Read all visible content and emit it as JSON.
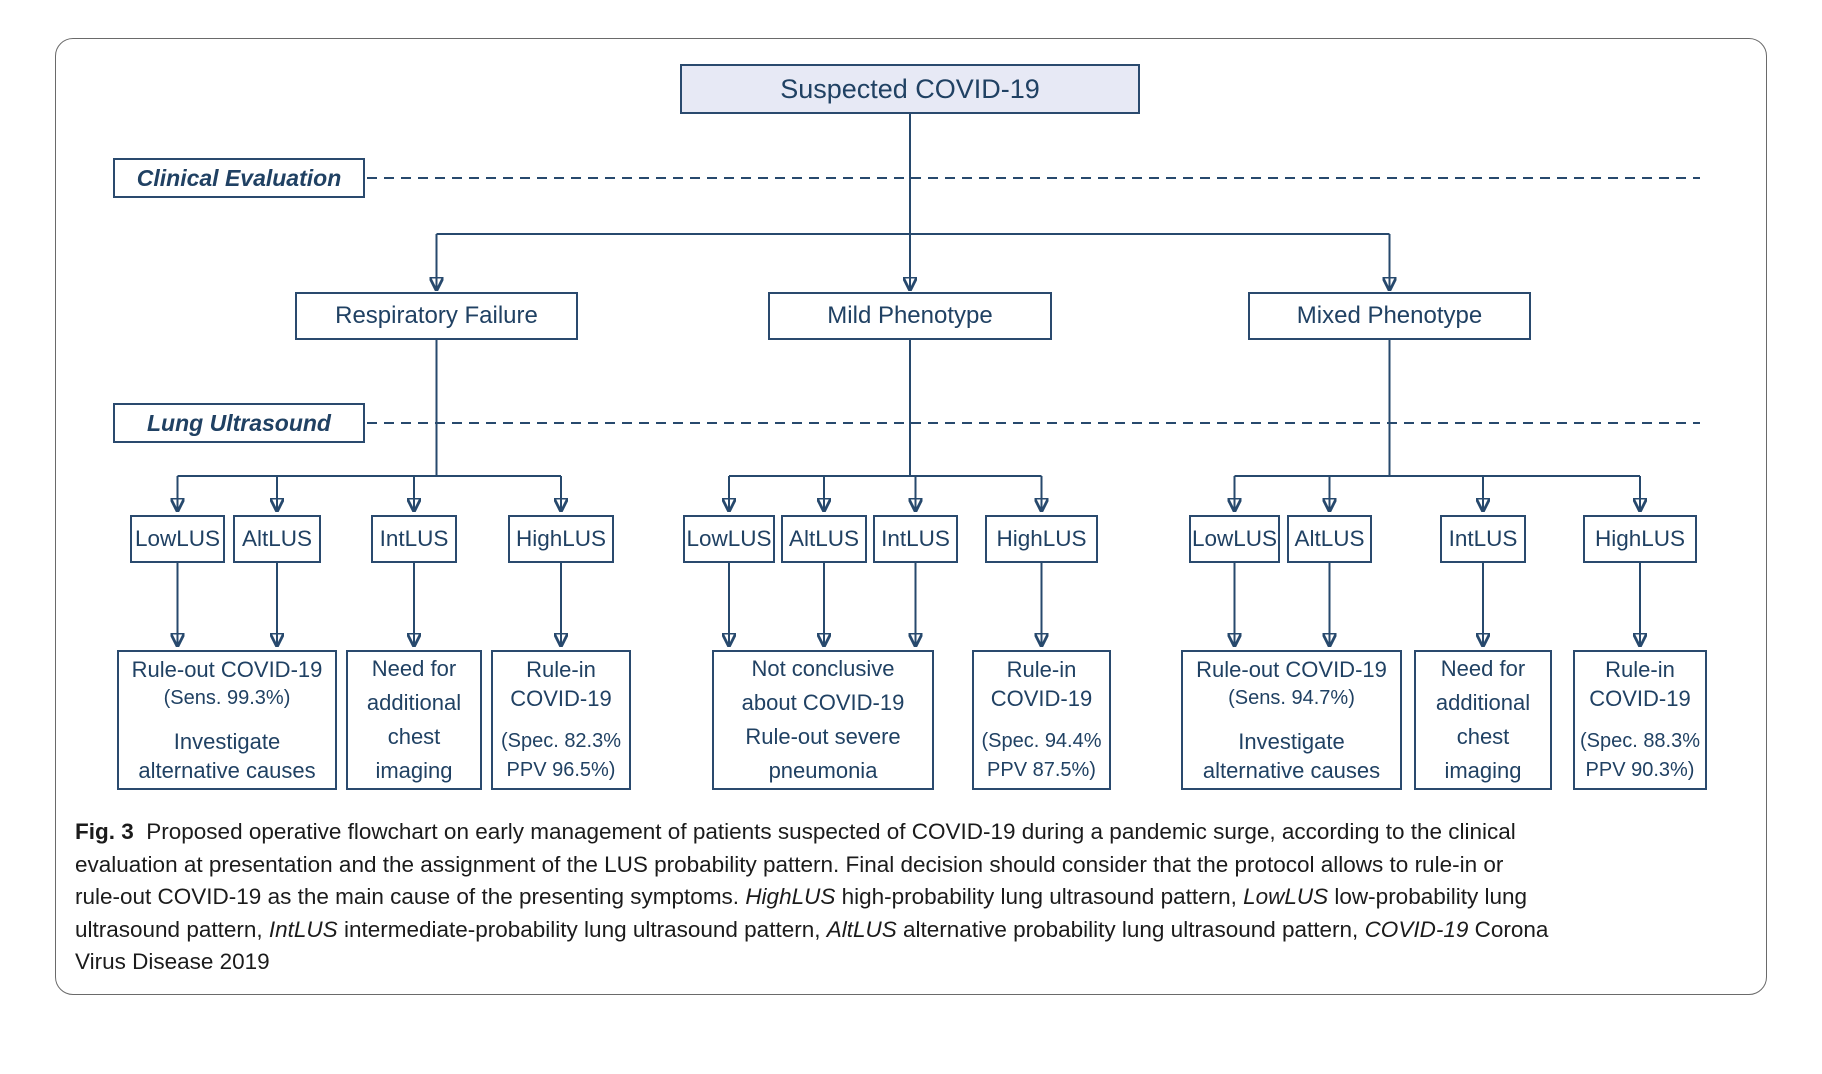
{
  "figure": {
    "colors": {
      "line_navy": "#27496d",
      "box_border_navy": "#2a4a6e",
      "text_navy": "#204163",
      "root_fill": "#e7e9f5",
      "caption_text": "#1b1b1b"
    },
    "flowchart": {
      "root_label": "Suspected COVID-19",
      "stages": [
        {
          "label": "Clinical Evaluation"
        },
        {
          "label": "Lung Ultrasound"
        }
      ],
      "groups": [
        {
          "phenotype": "Respiratory Failure",
          "lus": [
            "LowLUS",
            "AltLUS",
            "IntLUS",
            "HighLUS"
          ],
          "outcomes": [
            {
              "lines": [
                "Rule-out COVID-19",
                "(Sens. 99.3%)",
                "Investigate",
                "alternative causes"
              ]
            },
            {
              "lines": [
                "Need for",
                "additional",
                "chest",
                "imaging"
              ]
            },
            {
              "lines": [
                "Rule-in",
                "COVID-19",
                "(Spec. 82.3%",
                "PPV 96.5%)"
              ]
            }
          ]
        },
        {
          "phenotype": "Mild Phenotype",
          "lus": [
            "LowLUS",
            "AltLUS",
            "IntLUS",
            "HighLUS"
          ],
          "outcomes": [
            {
              "lines": [
                "Not conclusive",
                "about COVID-19",
                "Rule-out severe",
                "pneumonia"
              ]
            },
            {
              "lines": [
                "Rule-in",
                "COVID-19",
                "(Spec. 94.4%",
                "PPV 87.5%)"
              ]
            }
          ]
        },
        {
          "phenotype": "Mixed Phenotype",
          "lus": [
            "LowLUS",
            "AltLUS",
            "IntLUS",
            "HighLUS"
          ],
          "outcomes": [
            {
              "lines": [
                "Rule-out COVID-19",
                "(Sens. 94.7%)",
                "Investigate",
                "alternative causes"
              ]
            },
            {
              "lines": [
                "Need for",
                "additional",
                "chest",
                "imaging"
              ]
            },
            {
              "lines": [
                "Rule-in",
                "COVID-19",
                "(Spec. 88.3%",
                "PPV 90.3%)"
              ]
            }
          ]
        }
      ]
    },
    "caption": {
      "segments": [
        {
          "t": "Fig. 3",
          "b": true
        },
        {
          "t": "  Proposed operative flowchart on early management of patients suspected of COVID-19 during a pandemic surge, according to the clinical"
        },
        {
          "br": true
        },
        {
          "t": "evaluation at presentation and the assignment of the LUS probability pattern. Final decision should consider that the protocol allows to rule-in or"
        },
        {
          "br": true
        },
        {
          "t": "rule-out COVID-19 as the main cause of the presenting symptoms. "
        },
        {
          "t": "HighLUS",
          "i": true
        },
        {
          "t": " high-probability lung ultrasound pattern, "
        },
        {
          "t": "LowLUS",
          "i": true
        },
        {
          "t": " low-probability lung"
        },
        {
          "br": true
        },
        {
          "t": "ultrasound pattern, "
        },
        {
          "t": "IntLUS",
          "i": true
        },
        {
          "t": " intermediate-probability lung ultrasound pattern, "
        },
        {
          "t": "AltLUS",
          "i": true
        },
        {
          "t": " alternative probability lung ultrasound pattern, "
        },
        {
          "t": "COVID-19",
          "i": true
        },
        {
          "t": " Corona"
        },
        {
          "br": true
        },
        {
          "t": "Virus Disease 2019"
        }
      ]
    }
  }
}
